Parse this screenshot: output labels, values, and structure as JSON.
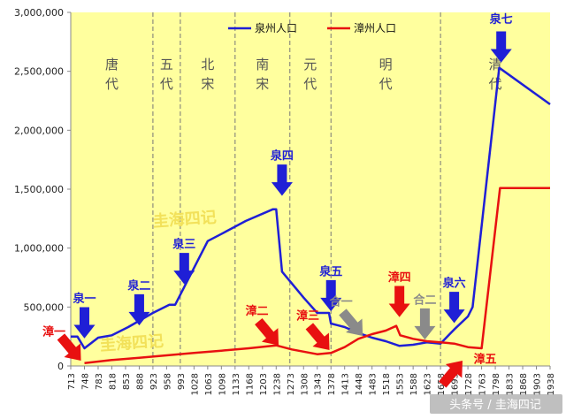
{
  "chart_data": {
    "type": "line",
    "ylim": [
      0,
      3000000
    ],
    "y_ticks": [
      "0",
      "500,000",
      "1,000,000",
      "1,500,000",
      "2,000,000",
      "2,500,000",
      "3,000,000"
    ],
    "y_tick_values": [
      0,
      500000,
      1000000,
      1500000,
      2000000,
      2500000,
      3000000
    ],
    "categories": [
      "713",
      "748",
      "783",
      "818",
      "853",
      "888",
      "923",
      "958",
      "993",
      "1028",
      "1063",
      "1098",
      "1133",
      "1168",
      "1203",
      "1238",
      "1273",
      "1308",
      "1343",
      "1378",
      "1413",
      "1448",
      "1483",
      "1518",
      "1553",
      "1588",
      "1623",
      "1658",
      "1693",
      "1728",
      "1763",
      "1798",
      "1833",
      "1868",
      "1903",
      "1938"
    ],
    "legend_position": "top",
    "grid": false,
    "series": [
      {
        "name": "泉州人口",
        "color": "#1f1fd6",
        "points": [
          [
            713,
            250000
          ],
          [
            730,
            250000
          ],
          [
            748,
            150000
          ],
          [
            783,
            240000
          ],
          [
            818,
            260000
          ],
          [
            860,
            330000
          ],
          [
            923,
            450000
          ],
          [
            965,
            520000
          ],
          [
            980,
            520000
          ],
          [
            1063,
            1060000
          ],
          [
            1098,
            1120000
          ],
          [
            1160,
            1230000
          ],
          [
            1230,
            1330000
          ],
          [
            1238,
            1330000
          ],
          [
            1253,
            800000
          ],
          [
            1308,
            580000
          ],
          [
            1343,
            450000
          ],
          [
            1373,
            450000
          ],
          [
            1378,
            360000
          ],
          [
            1413,
            330000
          ],
          [
            1448,
            280000
          ],
          [
            1483,
            240000
          ],
          [
            1518,
            210000
          ],
          [
            1553,
            170000
          ],
          [
            1588,
            180000
          ],
          [
            1623,
            200000
          ],
          [
            1658,
            190000
          ],
          [
            1693,
            310000
          ],
          [
            1728,
            420000
          ],
          [
            1740,
            500000
          ],
          [
            1808,
            2530000
          ],
          [
            1938,
            2220000
          ]
        ]
      },
      {
        "name": "漳州人口",
        "color": "#e81010",
        "points": [
          [
            748,
            25000
          ],
          [
            818,
            50000
          ],
          [
            888,
            70000
          ],
          [
            958,
            90000
          ],
          [
            1028,
            110000
          ],
          [
            1098,
            130000
          ],
          [
            1168,
            150000
          ],
          [
            1238,
            175000
          ],
          [
            1278,
            140000
          ],
          [
            1343,
            100000
          ],
          [
            1378,
            110000
          ],
          [
            1413,
            160000
          ],
          [
            1448,
            230000
          ],
          [
            1483,
            270000
          ],
          [
            1518,
            300000
          ],
          [
            1545,
            340000
          ],
          [
            1555,
            260000
          ],
          [
            1588,
            230000
          ],
          [
            1623,
            210000
          ],
          [
            1658,
            200000
          ],
          [
            1693,
            190000
          ],
          [
            1728,
            160000
          ],
          [
            1763,
            150000
          ],
          [
            1810,
            1510000
          ],
          [
            1938,
            1510000
          ]
        ]
      }
    ],
    "dividers": [
      923,
      993,
      1133,
      1273,
      1378,
      1658
    ],
    "eras": [
      {
        "label": "唐代",
        "chars": [
          "唐",
          "代"
        ],
        "x": 818
      },
      {
        "label": "五代",
        "chars": [
          "五",
          "代"
        ],
        "x": 958
      },
      {
        "label": "北宋",
        "chars": [
          "北",
          "宋"
        ],
        "x": 1063
      },
      {
        "label": "南宋",
        "chars": [
          "南",
          "宋"
        ],
        "x": 1203
      },
      {
        "label": "元代",
        "chars": [
          "元",
          "代"
        ],
        "x": 1325
      },
      {
        "label": "明代",
        "chars": [
          "明",
          "代"
        ],
        "x": 1518
      },
      {
        "label": "清代",
        "chars": [
          "清",
          "代"
        ],
        "x": 1798
      }
    ],
    "annotations": [
      {
        "label": "泉一",
        "color": "#1f1fd6",
        "year": 748,
        "value": 240000,
        "dir": "down"
      },
      {
        "label": "泉二",
        "color": "#1f1fd6",
        "year": 888,
        "value": 350000,
        "dir": "down"
      },
      {
        "label": "泉三",
        "color": "#1f1fd6",
        "year": 1003,
        "value": 700000,
        "dir": "down"
      },
      {
        "label": "泉四",
        "color": "#1f1fd6",
        "year": 1253,
        "value": 1450000,
        "dir": "down"
      },
      {
        "label": "泉五",
        "color": "#1f1fd6",
        "year": 1378,
        "value": 470000,
        "dir": "down"
      },
      {
        "label": "泉六",
        "color": "#1f1fd6",
        "year": 1693,
        "value": 370000,
        "dir": "down"
      },
      {
        "label": "泉七",
        "color": "#1f1fd6",
        "year": 1813,
        "value": 2580000,
        "dir": "down"
      },
      {
        "label": "漳一",
        "color": "#e81010",
        "year": 738,
        "value": 50000,
        "dir": "down-right"
      },
      {
        "label": "漳二",
        "color": "#e81010",
        "year": 1243,
        "value": 180000,
        "dir": "down-right"
      },
      {
        "label": "漳三",
        "color": "#e81010",
        "year": 1373,
        "value": 140000,
        "dir": "down-right"
      },
      {
        "label": "漳四",
        "color": "#e81010",
        "year": 1553,
        "value": 420000,
        "dir": "down"
      },
      {
        "label": "漳五",
        "color": "#e81010",
        "year": 1713,
        "value": 40000,
        "dir": "up-right"
      },
      {
        "label": "合一",
        "color": "#8a8a8a",
        "year": 1458,
        "value": 260000,
        "dir": "down-right"
      },
      {
        "label": "合二",
        "color": "#8a8a8a",
        "year": 1618,
        "value": 230000,
        "dir": "down"
      }
    ]
  },
  "watermark": {
    "text": "头条号 / 圭海四记",
    "stamps": [
      "圭海四记",
      "圭海四记"
    ]
  }
}
